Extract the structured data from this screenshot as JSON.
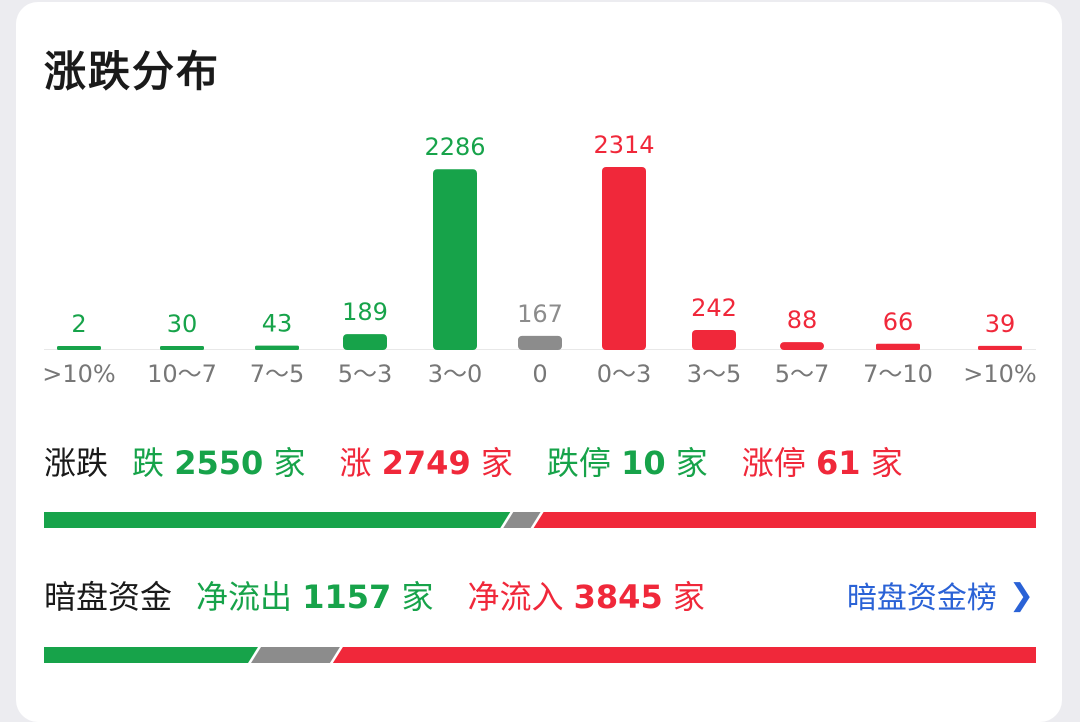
{
  "title": "涨跌分布",
  "chart_data": {
    "type": "bar",
    "categories": [
      ">10%",
      "10～7",
      "7～5",
      "5～3",
      "3～0",
      "0",
      "0～3",
      "3～5",
      "5～7",
      "7～10",
      ">10%"
    ],
    "values": [
      2,
      30,
      43,
      189,
      2286,
      167,
      2314,
      242,
      88,
      66,
      39
    ],
    "value_labels": [
      "2",
      "30",
      "43",
      "189",
      "2286",
      "167",
      "2314",
      "242",
      "88",
      "66",
      "39"
    ],
    "colors": [
      "#17a34a",
      "#17a34a",
      "#17a34a",
      "#17a34a",
      "#17a34a",
      "#8c8c8c",
      "#f0283a",
      "#f0283a",
      "#f0283a",
      "#f0283a",
      "#f0283a"
    ]
  },
  "updown": {
    "label": "涨跌",
    "down_prefix": "跌",
    "down_count": "2550",
    "down_unit": "家",
    "up_prefix": "涨",
    "up_count": "2749",
    "up_unit": "家",
    "limit_down_prefix": "跌停",
    "limit_down_count": "10",
    "limit_down_unit": "家",
    "limit_up_prefix": "涨停",
    "limit_up_count": "61",
    "limit_up_unit": "家",
    "ratio": {
      "down": 2550,
      "flat": 167,
      "up": 2749
    }
  },
  "darkpool": {
    "label": "暗盘资金",
    "outflow_prefix": "净流出",
    "outflow_count": "1157",
    "outflow_unit": "家",
    "inflow_prefix": "净流入",
    "inflow_count": "3845",
    "inflow_unit": "家",
    "link_label": "暗盘资金榜",
    "link_icon": "chevron-right-icon",
    "ratio": {
      "outflow": 1157,
      "neutral": 450,
      "inflow": 3845
    }
  },
  "colors": {
    "green": "#17a34a",
    "red": "#f0283a",
    "gray": "#8c8c8c",
    "link": "#2a62d6"
  }
}
